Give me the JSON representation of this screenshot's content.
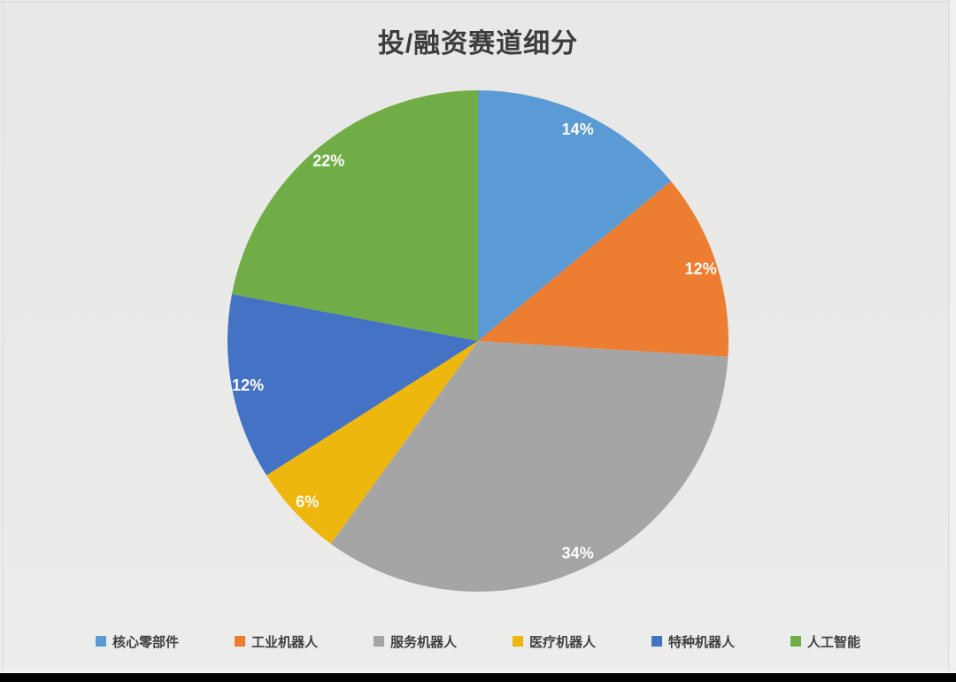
{
  "chart_data": {
    "type": "pie",
    "title": "投/融资赛道细分",
    "categories": [
      "核心零部件",
      "工业机器人",
      "服务机器人",
      "医疗机器人",
      "特种机器人",
      "人工智能"
    ],
    "values": [
      14,
      12,
      34,
      6,
      12,
      22
    ],
    "labels": [
      "14%",
      "12%",
      "34%",
      "6%",
      "12%",
      "22%"
    ],
    "colors": [
      "#5B9BD5",
      "#ED7D31",
      "#A5A5A5",
      "#EDB70E",
      "#4472C4",
      "#70AD47"
    ],
    "label_color": "#FFFFFF",
    "start_angle_deg": 0,
    "direction": "clockwise",
    "legend_position": "bottom",
    "title_color": "#3D3D3D",
    "legend_text_color": "#404040",
    "background_color": "#E9E9E8"
  }
}
